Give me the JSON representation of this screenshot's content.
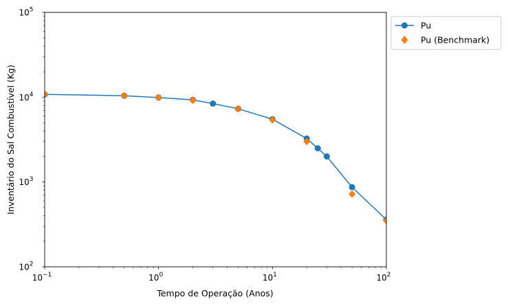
{
  "chart_data": {
    "type": "line",
    "xlabel": "Tempo de Operação (Anos)",
    "ylabel": "Inventário do Sal Combustível (Kg)",
    "xscale": "log",
    "yscale": "log",
    "xlim": [
      0.1,
      100
    ],
    "ylim": [
      100,
      100000
    ],
    "grid": false,
    "legend_position": "outside-top-right",
    "x_ticks": [
      {
        "value": 0.1,
        "base": "10",
        "exp": "−1"
      },
      {
        "value": 1,
        "base": "10",
        "exp": "0"
      },
      {
        "value": 10,
        "base": "10",
        "exp": "1"
      },
      {
        "value": 100,
        "base": "10",
        "exp": "2"
      }
    ],
    "y_ticks": [
      {
        "value": 100,
        "base": "10",
        "exp": "2"
      },
      {
        "value": 1000,
        "base": "10",
        "exp": "3"
      },
      {
        "value": 10000,
        "base": "10",
        "exp": "4"
      },
      {
        "value": 100000,
        "base": "10",
        "exp": "5"
      }
    ],
    "series": [
      {
        "name": "Pu",
        "style": "line-circle",
        "color": "#1f77b4",
        "x": [
          0.1,
          0.5,
          1,
          2,
          3,
          5,
          10,
          20,
          25,
          30,
          50,
          100
        ],
        "y": [
          10800,
          10400,
          9900,
          9300,
          8400,
          7300,
          5500,
          3250,
          2500,
          2000,
          870,
          360
        ]
      },
      {
        "name": "Pu (Benchmark)",
        "style": "diamond",
        "color": "#ff7f0e",
        "x": [
          0.1,
          0.5,
          1,
          2,
          5,
          10,
          20,
          50,
          100
        ],
        "y": [
          10900,
          10400,
          9900,
          9200,
          7300,
          5400,
          3000,
          720,
          350
        ]
      }
    ]
  }
}
